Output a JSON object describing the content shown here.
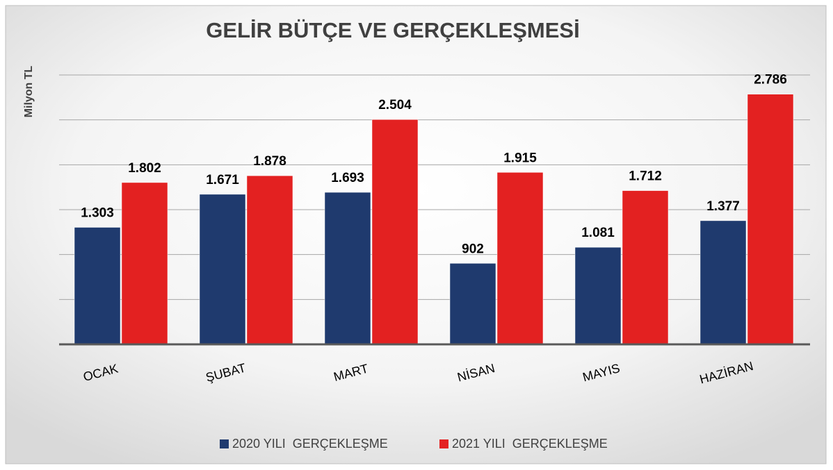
{
  "chart_data": {
    "type": "bar",
    "title": "GELİR BÜTÇE VE GERÇEKLEŞMESİ",
    "y_label": "Milyon TL",
    "categories": [
      "OCAK",
      "ŞUBAT",
      "MART",
      "NİSAN",
      "MAYIS",
      "HAZİRAN"
    ],
    "series": [
      {
        "name": "2020 YILI  GERÇEKLEŞME",
        "color": "#1f3a6e",
        "values": [
          1303,
          1671,
          1693,
          902,
          1081,
          1377
        ],
        "value_labels": [
          "1.303",
          "1.671",
          "1.693",
          "902",
          "1.081",
          "1.377"
        ]
      },
      {
        "name": "2021 YILI  GERÇEKLEŞME",
        "color": "#e32121",
        "values": [
          1802,
          1878,
          2504,
          1915,
          1712,
          2786
        ],
        "value_labels": [
          "1.802",
          "1.878",
          "2.504",
          "1.915",
          "1.712",
          "2.786"
        ]
      }
    ],
    "ylim": [
      0,
      3000
    ],
    "yticks": [
      0,
      500,
      1000,
      1500,
      2000,
      2500,
      3000
    ],
    "grid": true,
    "legend": "bottom"
  }
}
